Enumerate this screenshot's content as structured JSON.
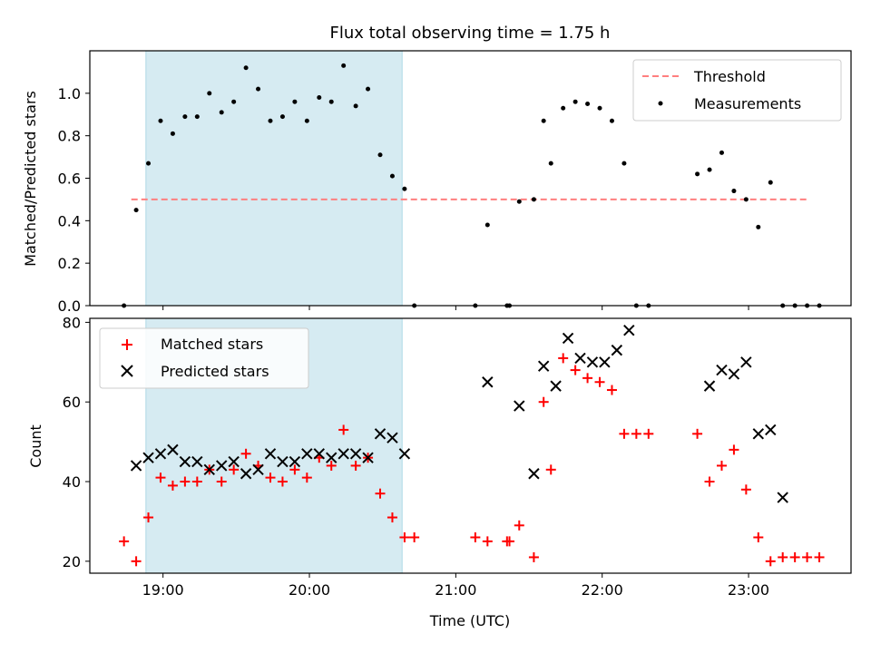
{
  "title": "Flux total observing time = 1.75 h",
  "xlabel": "Time (UTC)",
  "colors": {
    "shade": "#add8e6",
    "threshold": "#ff7f7f",
    "matched": "#ff0000",
    "predicted": "#000000",
    "measurements": "#000000"
  },
  "chart_data": [
    {
      "type": "scatter",
      "ylabel": "Matched/Predicted stars",
      "x_unit": "hours UTC",
      "xlim": [
        18.5,
        23.7
      ],
      "ylim": [
        0,
        1.2
      ],
      "yticks": [
        0.0,
        0.2,
        0.4,
        0.6,
        0.8,
        1.0
      ],
      "ytick_labels": [
        "0.0",
        "0.2",
        "0.4",
        "0.6",
        "0.8",
        "1.0"
      ],
      "shaded_span": [
        "18:53",
        "20:38"
      ],
      "threshold": {
        "name": "Threshold",
        "value": 0.5,
        "x_range": [
          "18:47",
          "23:25"
        ]
      },
      "legend": {
        "location": "upper right",
        "entries": [
          "Threshold",
          "Measurements"
        ]
      },
      "series": [
        {
          "name": "Measurements",
          "x": [
            "18:44",
            "18:49",
            "18:54",
            "18:59",
            "19:04",
            "19:09",
            "19:14",
            "19:19",
            "19:24",
            "19:29",
            "19:34",
            "19:39",
            "19:44",
            "19:49",
            "19:54",
            "19:59",
            "20:04",
            "20:09",
            "20:14",
            "20:19",
            "20:24",
            "20:29",
            "20:34",
            "20:39",
            "20:43",
            "21:08",
            "21:13",
            "21:21",
            "21:22",
            "21:26",
            "21:32",
            "21:36",
            "21:39",
            "21:44",
            "21:49",
            "21:54",
            "21:59",
            "22:04",
            "22:09",
            "22:14",
            "22:19",
            "22:39",
            "22:44",
            "22:49",
            "22:54",
            "22:59",
            "23:04",
            "23:09",
            "23:14",
            "23:19",
            "23:24",
            "23:29"
          ],
          "y": [
            0.0,
            0.45,
            0.67,
            0.87,
            0.81,
            0.89,
            0.89,
            1.0,
            0.91,
            0.96,
            1.12,
            1.02,
            0.87,
            0.89,
            0.96,
            0.87,
            0.98,
            0.96,
            1.13,
            0.94,
            1.02,
            0.71,
            0.61,
            0.55,
            0.0,
            0.0,
            0.38,
            0.0,
            0.0,
            0.49,
            0.5,
            0.87,
            0.67,
            0.93,
            0.96,
            0.95,
            0.93,
            0.87,
            0.67,
            0.0,
            0.0,
            0.62,
            0.64,
            0.72,
            0.54,
            0.5,
            0.37,
            0.58,
            0.0,
            0.0,
            0.0,
            0.0
          ]
        }
      ]
    },
    {
      "type": "scatter",
      "ylabel": "Count",
      "x_unit": "hours UTC",
      "xlim": [
        18.5,
        23.7
      ],
      "ylim": [
        17,
        81
      ],
      "yticks": [
        20,
        40,
        60,
        80
      ],
      "ytick_labels": [
        "20",
        "40",
        "60",
        "80"
      ],
      "xticks": [
        "19:00",
        "20:00",
        "21:00",
        "22:00",
        "23:00"
      ],
      "shaded_span": [
        "18:53",
        "20:38"
      ],
      "legend": {
        "location": "upper left",
        "entries": [
          "Matched stars",
          "Predicted stars"
        ]
      },
      "series": [
        {
          "name": "Matched stars",
          "x": [
            "18:44",
            "18:49",
            "18:54",
            "18:59",
            "19:04",
            "19:09",
            "19:14",
            "19:19",
            "19:24",
            "19:29",
            "19:34",
            "19:39",
            "19:44",
            "19:49",
            "19:54",
            "19:59",
            "20:04",
            "20:09",
            "20:14",
            "20:19",
            "20:24",
            "20:29",
            "20:34",
            "20:39",
            "20:43",
            "21:08",
            "21:13",
            "21:21",
            "21:22",
            "21:26",
            "21:32",
            "21:36",
            "21:39",
            "21:44",
            "21:49",
            "21:54",
            "21:59",
            "22:04",
            "22:09",
            "22:14",
            "22:19",
            "22:39",
            "22:44",
            "22:49",
            "22:54",
            "22:59",
            "23:04",
            "23:09",
            "23:14",
            "23:19",
            "23:24",
            "23:29"
          ],
          "y": [
            25,
            20,
            31,
            41,
            39,
            40,
            40,
            43,
            40,
            43,
            47,
            44,
            41,
            40,
            43,
            41,
            46,
            44,
            53,
            44,
            46,
            37,
            31,
            26,
            26,
            26,
            25,
            25,
            25,
            29,
            21,
            60,
            43,
            71,
            68,
            66,
            65,
            63,
            52,
            52,
            52,
            52,
            40,
            44,
            48,
            38,
            26,
            20,
            21,
            21,
            21,
            21
          ]
        },
        {
          "name": "Predicted stars",
          "x": [
            "18:49",
            "18:54",
            "18:59",
            "19:04",
            "19:09",
            "19:14",
            "19:19",
            "19:24",
            "19:29",
            "19:34",
            "19:39",
            "19:44",
            "19:49",
            "19:54",
            "19:59",
            "20:04",
            "20:09",
            "20:14",
            "20:19",
            "20:24",
            "20:29",
            "20:34",
            "20:39",
            "21:13",
            "21:26",
            "21:32",
            "21:36",
            "21:41",
            "21:46",
            "21:51",
            "21:56",
            "22:01",
            "22:06",
            "22:11",
            "22:44",
            "22:49",
            "22:54",
            "22:59",
            "23:04",
            "23:09",
            "23:14"
          ],
          "y": [
            44,
            46,
            47,
            48,
            45,
            45,
            43,
            44,
            45,
            42,
            43,
            47,
            45,
            45,
            47,
            47,
            46,
            47,
            47,
            46,
            52,
            51,
            47,
            65,
            59,
            42,
            69,
            64,
            76,
            71,
            70,
            70,
            73,
            78,
            64,
            68,
            67,
            70,
            52,
            53,
            36
          ]
        }
      ]
    }
  ]
}
